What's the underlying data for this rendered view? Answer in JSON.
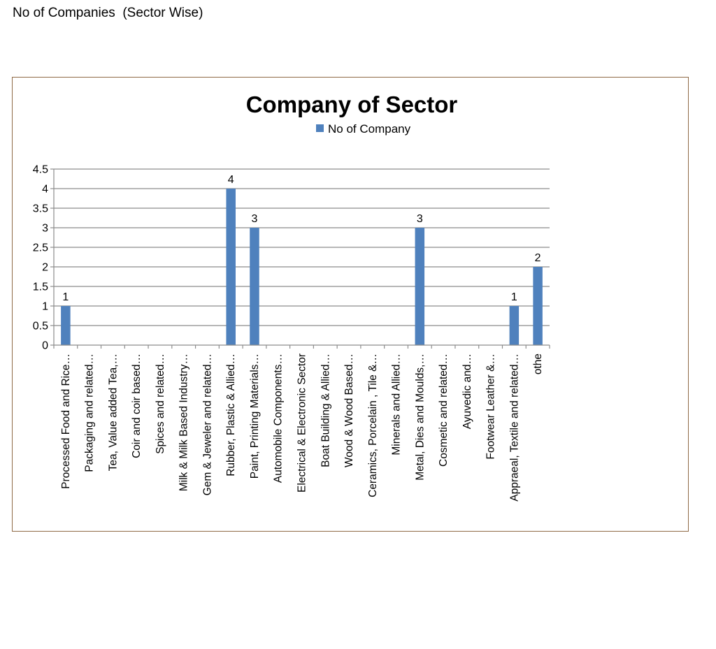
{
  "page": {
    "heading": "No of Companies  (Sector Wise)"
  },
  "chart_data": {
    "type": "bar",
    "title": "Company of Sector",
    "legend_position": "top",
    "grid": true,
    "ylim": [
      0,
      4.5
    ],
    "yticks": [
      "0",
      "0.5",
      "1",
      "1.5",
      "2",
      "2.5",
      "3",
      "3.5",
      "4",
      "4.5"
    ],
    "bar_color": "#4f81bd",
    "categories": [
      "Processed Food and Rice…",
      "Packaging and related…",
      "Tea, Value added Tea,…",
      "Coir and coir based…",
      "Spices and related…",
      "Milk & Milk Based Industry…",
      "Gem & Jeweler and related…",
      "Rubber, Plastic & Allied…",
      "Paint, Printing Materials…",
      "Automobile Components…",
      "Electrical & Electronic Sector",
      "Boat Building & Allied…",
      "Wood & Wood Based…",
      "Ceramics, Porcelain , Tile &…",
      "Minerals and Allied…",
      "Metal, Dies and Moulds,…",
      "Cosmetic and related…",
      "Ayuvedic and…",
      "Footwear Leather &…",
      "Appraeal, Textile and related…",
      "othe"
    ],
    "series": [
      {
        "name": "No of Company",
        "values": [
          1,
          null,
          null,
          null,
          null,
          null,
          null,
          4,
          3,
          null,
          null,
          null,
          null,
          null,
          null,
          3,
          null,
          null,
          null,
          1,
          2
        ]
      }
    ]
  }
}
